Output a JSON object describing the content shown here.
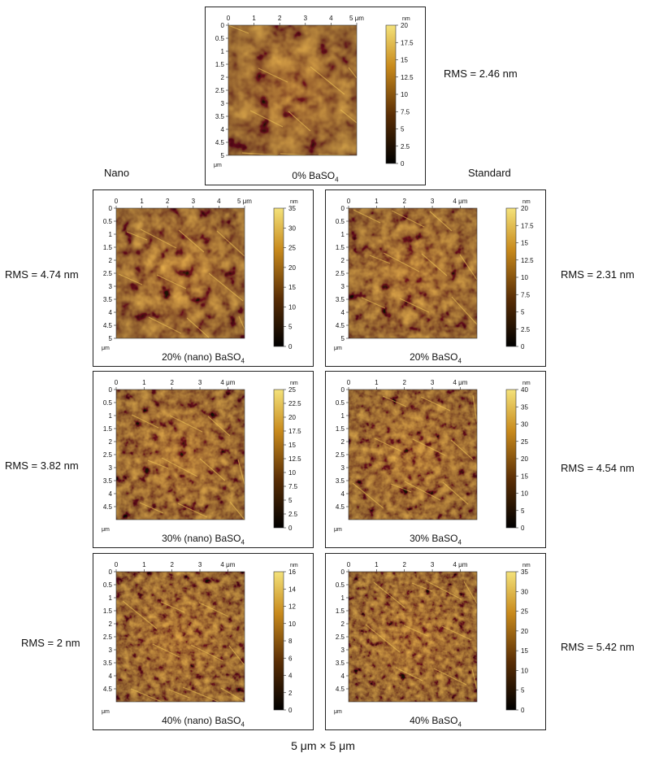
{
  "column_titles": {
    "nano": "Nano",
    "standard": "Standard"
  },
  "footer": {
    "size": "5 μm",
    "times": "×",
    "size2": "5 μm"
  },
  "unit_label": "nm",
  "axis_unit": "μm",
  "panels": [
    {
      "id": "p0",
      "caption_main": "0% BaSO",
      "caption_sub": "4",
      "rms": "RMS = 2.46 nm",
      "xticks": [
        "0",
        "1",
        "2",
        "3",
        "4",
        "5 μm"
      ],
      "yticks": [
        "0",
        "0.5",
        "1",
        "1.5",
        "2",
        "2.5",
        "3",
        "3.5",
        "4",
        "4.5",
        "5"
      ],
      "cticks": [
        "20",
        "17.5",
        "15",
        "12.5",
        "10",
        "7.5",
        "5",
        "2.5",
        "0"
      ]
    },
    {
      "id": "p1",
      "caption_main": "20% (nano) BaSO",
      "caption_sub": "4",
      "rms": "RMS = 4.74 nm",
      "xticks": [
        "0",
        "1",
        "2",
        "3",
        "4",
        "5 μm"
      ],
      "yticks": [
        "0",
        "0.5",
        "1",
        "1.5",
        "2",
        "2.5",
        "3",
        "3.5",
        "4",
        "4.5",
        "5"
      ],
      "cticks": [
        "35",
        "30",
        "25",
        "20",
        "15",
        "10",
        "5",
        "0"
      ]
    },
    {
      "id": "p2",
      "caption_main": "20% BaSO",
      "caption_sub": "4",
      "rms": "RMS = 2.31 nm",
      "xticks": [
        "0",
        "1",
        "2",
        "3",
        "4 μm"
      ],
      "yticks": [
        "0",
        "0.5",
        "1",
        "1.5",
        "2",
        "2.5",
        "3",
        "3.5",
        "4",
        "4.5",
        "5"
      ],
      "cticks": [
        "20",
        "17.5",
        "15",
        "12.5",
        "10",
        "7.5",
        "5",
        "2.5",
        "0"
      ]
    },
    {
      "id": "p3",
      "caption_main": "30% (nano) BaSO",
      "caption_sub": "4",
      "rms": "RMS = 3.82 nm",
      "xticks": [
        "0",
        "1",
        "2",
        "3",
        "4 μm"
      ],
      "yticks": [
        "0",
        "0.5",
        "1",
        "1.5",
        "2",
        "2.5",
        "3",
        "3.5",
        "4",
        "4.5"
      ],
      "cticks": [
        "25",
        "22.5",
        "20",
        "17.5",
        "15",
        "12.5",
        "10",
        "7.5",
        "5",
        "2.5",
        "0"
      ]
    },
    {
      "id": "p4",
      "caption_main": "30% BaSO",
      "caption_sub": "4",
      "rms": "RMS = 4.54 nm",
      "xticks": [
        "0",
        "1",
        "2",
        "3",
        "4 μm"
      ],
      "yticks": [
        "0",
        "0.5",
        "1",
        "1.5",
        "2",
        "2.5",
        "3",
        "3.5",
        "4",
        "4.5"
      ],
      "cticks": [
        "40",
        "35",
        "30",
        "25",
        "20",
        "15",
        "10",
        "5",
        "0"
      ]
    },
    {
      "id": "p5",
      "caption_main": "40% (nano) BaSO",
      "caption_sub": "4",
      "rms": "RMS = 2 nm",
      "xticks": [
        "0",
        "1",
        "2",
        "3",
        "4 μm"
      ],
      "yticks": [
        "0",
        "0.5",
        "1",
        "1.5",
        "2",
        "2.5",
        "3",
        "3.5",
        "4",
        "4.5"
      ],
      "cticks": [
        "16",
        "14",
        "12",
        "10",
        "8",
        "6",
        "4",
        "2",
        "0"
      ]
    },
    {
      "id": "p6",
      "caption_main": "40% BaSO",
      "caption_sub": "4",
      "rms": "RMS = 5.42 nm",
      "xticks": [
        "0",
        "1",
        "2",
        "3",
        "4 μm"
      ],
      "yticks": [
        "0",
        "0.5",
        "1",
        "1.5",
        "2",
        "2.5",
        "3",
        "3.5",
        "4",
        "4.5"
      ],
      "cticks": [
        "35",
        "30",
        "25",
        "20",
        "15",
        "10",
        "5",
        "0"
      ]
    }
  ],
  "colors": {
    "afm_dark": "#2a1600",
    "afm_mid": "#9a5a10",
    "afm_light": "#f4e27a"
  }
}
